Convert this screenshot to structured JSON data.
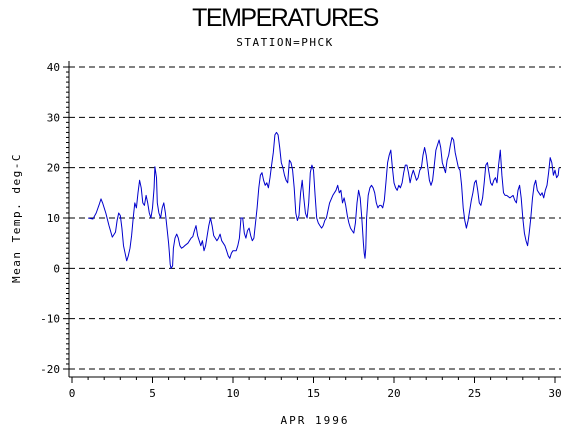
{
  "chart_data": {
    "type": "line",
    "title": "TEMPERATURES",
    "subtitle": "STATION=PHCK",
    "xlabel": "APR 1996",
    "ylabel": "Mean Temp. deg-C",
    "xlim": [
      0,
      30
    ],
    "ylim": [
      -20,
      40
    ],
    "xticks": [
      "0",
      "5",
      "10",
      "15",
      "20",
      "25",
      "30"
    ],
    "yticks": [
      "-20",
      "-10",
      "0",
      "10",
      "20",
      "30",
      "40"
    ],
    "grid": "horizontal dashed at major y ticks",
    "series": [
      {
        "color": "#0000cc",
        "points": [
          [
            1.0,
            10.0
          ],
          [
            1.3,
            9.8
          ],
          [
            1.5,
            11.0
          ],
          [
            1.7,
            12.8
          ],
          [
            1.8,
            13.8
          ],
          [
            1.9,
            13.0
          ],
          [
            2.1,
            11.0
          ],
          [
            2.3,
            8.5
          ],
          [
            2.5,
            6.2
          ],
          [
            2.7,
            7.2
          ],
          [
            2.8,
            9.5
          ],
          [
            2.9,
            11.0
          ],
          [
            3.0,
            10.5
          ],
          [
            3.1,
            8.0
          ],
          [
            3.2,
            4.5
          ],
          [
            3.3,
            3.0
          ],
          [
            3.4,
            1.5
          ],
          [
            3.5,
            2.5
          ],
          [
            3.6,
            4.0
          ],
          [
            3.7,
            6.5
          ],
          [
            3.8,
            10.0
          ],
          [
            3.9,
            13.0
          ],
          [
            4.0,
            12.0
          ],
          [
            4.1,
            15.0
          ],
          [
            4.2,
            17.5
          ],
          [
            4.3,
            16.0
          ],
          [
            4.4,
            13.0
          ],
          [
            4.5,
            12.5
          ],
          [
            4.6,
            14.5
          ],
          [
            4.7,
            13.0
          ],
          [
            4.8,
            11.0
          ],
          [
            4.9,
            10.0
          ],
          [
            5.0,
            12.0
          ],
          [
            5.1,
            16.0
          ],
          [
            5.15,
            20.2
          ],
          [
            5.25,
            18.0
          ],
          [
            5.3,
            13.0
          ],
          [
            5.4,
            11.0
          ],
          [
            5.5,
            10.0
          ],
          [
            5.6,
            12.0
          ],
          [
            5.7,
            13.0
          ],
          [
            5.8,
            11.0
          ],
          [
            5.9,
            8.0
          ],
          [
            6.0,
            5.0
          ],
          [
            6.05,
            3.0
          ],
          [
            6.1,
            0.8
          ],
          [
            6.15,
            0.0
          ],
          [
            6.25,
            0.5
          ],
          [
            6.3,
            4.0
          ],
          [
            6.4,
            6.0
          ],
          [
            6.5,
            6.8
          ],
          [
            6.6,
            6.0
          ],
          [
            6.7,
            4.5
          ],
          [
            6.8,
            4.0
          ],
          [
            6.9,
            4.2
          ],
          [
            7.0,
            4.5
          ],
          [
            7.2,
            5.0
          ],
          [
            7.4,
            6.0
          ],
          [
            7.5,
            6.3
          ],
          [
            7.6,
            7.5
          ],
          [
            7.7,
            8.5
          ],
          [
            7.8,
            6.5
          ],
          [
            7.9,
            5.5
          ],
          [
            8.0,
            4.5
          ],
          [
            8.1,
            5.5
          ],
          [
            8.2,
            3.5
          ],
          [
            8.3,
            4.5
          ],
          [
            8.4,
            6.5
          ],
          [
            8.5,
            8.5
          ],
          [
            8.6,
            10.0
          ],
          [
            8.7,
            8.5
          ],
          [
            8.8,
            6.5
          ],
          [
            8.9,
            6.0
          ],
          [
            9.0,
            5.5
          ],
          [
            9.1,
            6.0
          ],
          [
            9.2,
            6.8
          ],
          [
            9.3,
            5.5
          ],
          [
            9.4,
            5.0
          ],
          [
            9.5,
            4.5
          ],
          [
            9.6,
            3.5
          ],
          [
            9.7,
            2.5
          ],
          [
            9.8,
            2.0
          ],
          [
            9.9,
            3.0
          ],
          [
            10.0,
            3.5
          ],
          [
            10.2,
            3.5
          ],
          [
            10.3,
            4.5
          ],
          [
            10.4,
            6.0
          ],
          [
            10.5,
            10.0
          ],
          [
            10.6,
            10.0
          ],
          [
            10.7,
            7.0
          ],
          [
            10.8,
            6.0
          ],
          [
            10.9,
            7.5
          ],
          [
            11.0,
            8.0
          ],
          [
            11.1,
            6.5
          ],
          [
            11.2,
            5.5
          ],
          [
            11.3,
            6.0
          ],
          [
            11.4,
            9.0
          ],
          [
            11.5,
            12.0
          ],
          [
            11.6,
            16.0
          ],
          [
            11.7,
            18.5
          ],
          [
            11.8,
            19.0
          ],
          [
            11.9,
            17.5
          ],
          [
            12.0,
            16.5
          ],
          [
            12.1,
            17.0
          ],
          [
            12.2,
            16.0
          ],
          [
            12.3,
            18.0
          ],
          [
            12.4,
            20.5
          ],
          [
            12.5,
            23.0
          ],
          [
            12.6,
            26.5
          ],
          [
            12.7,
            27.0
          ],
          [
            12.8,
            26.5
          ],
          [
            12.9,
            24.0
          ],
          [
            13.0,
            21.0
          ],
          [
            13.1,
            20.0
          ],
          [
            13.2,
            18.5
          ],
          [
            13.3,
            17.5
          ],
          [
            13.4,
            17.0
          ],
          [
            13.5,
            21.5
          ],
          [
            13.6,
            21.0
          ],
          [
            13.7,
            19.5
          ],
          [
            13.8,
            16.0
          ],
          [
            13.9,
            11.0
          ],
          [
            14.0,
            9.5
          ],
          [
            14.1,
            10.5
          ],
          [
            14.2,
            15.0
          ],
          [
            14.3,
            17.5
          ],
          [
            14.4,
            14.0
          ],
          [
            14.5,
            11.0
          ],
          [
            14.6,
            10.0
          ],
          [
            14.7,
            13.0
          ],
          [
            14.8,
            19.0
          ],
          [
            14.9,
            20.5
          ],
          [
            15.0,
            19.5
          ],
          [
            15.1,
            14.5
          ],
          [
            15.2,
            10.0
          ],
          [
            15.3,
            9.0
          ],
          [
            15.4,
            8.5
          ],
          [
            15.5,
            8.0
          ],
          [
            15.6,
            8.5
          ],
          [
            15.7,
            9.5
          ],
          [
            15.8,
            10.0
          ],
          [
            15.9,
            11.5
          ],
          [
            16.0,
            13.0
          ],
          [
            16.2,
            14.5
          ],
          [
            16.4,
            15.5
          ],
          [
            16.5,
            16.5
          ],
          [
            16.6,
            15.0
          ],
          [
            16.7,
            15.5
          ],
          [
            16.8,
            13.0
          ],
          [
            16.9,
            14.0
          ],
          [
            17.0,
            12.5
          ],
          [
            17.1,
            10.5
          ],
          [
            17.2,
            9.0
          ],
          [
            17.3,
            8.0
          ],
          [
            17.4,
            7.5
          ],
          [
            17.5,
            7.0
          ],
          [
            17.6,
            9.0
          ],
          [
            17.7,
            13.0
          ],
          [
            17.8,
            15.5
          ],
          [
            17.9,
            14.0
          ],
          [
            18.0,
            10.0
          ],
          [
            18.1,
            5.0
          ],
          [
            18.15,
            3.0
          ],
          [
            18.2,
            2.0
          ],
          [
            18.25,
            4.0
          ],
          [
            18.3,
            10.0
          ],
          [
            18.4,
            14.5
          ],
          [
            18.5,
            16.0
          ],
          [
            18.6,
            16.5
          ],
          [
            18.7,
            16.0
          ],
          [
            18.8,
            15.0
          ],
          [
            18.9,
            13.0
          ],
          [
            19.0,
            12.0
          ],
          [
            19.1,
            12.5
          ],
          [
            19.2,
            12.5
          ],
          [
            19.3,
            12.0
          ],
          [
            19.4,
            13.5
          ],
          [
            19.5,
            17.0
          ],
          [
            19.6,
            21.0
          ],
          [
            19.7,
            22.5
          ],
          [
            19.8,
            23.5
          ],
          [
            19.9,
            20.0
          ],
          [
            20.0,
            17.0
          ],
          [
            20.1,
            16.0
          ],
          [
            20.2,
            15.5
          ],
          [
            20.3,
            16.5
          ],
          [
            20.4,
            16.0
          ],
          [
            20.5,
            17.0
          ],
          [
            20.6,
            19.0
          ],
          [
            20.7,
            20.5
          ],
          [
            20.8,
            20.5
          ],
          [
            20.9,
            19.0
          ],
          [
            21.0,
            17.0
          ],
          [
            21.1,
            18.5
          ],
          [
            21.2,
            19.5
          ],
          [
            21.3,
            18.5
          ],
          [
            21.4,
            17.5
          ],
          [
            21.5,
            18.0
          ],
          [
            21.6,
            19.5
          ],
          [
            21.7,
            20.0
          ],
          [
            21.8,
            22.5
          ],
          [
            21.9,
            24.0
          ],
          [
            22.0,
            22.5
          ],
          [
            22.1,
            20.0
          ],
          [
            22.2,
            17.5
          ],
          [
            22.3,
            16.5
          ],
          [
            22.4,
            17.5
          ],
          [
            22.5,
            20.5
          ],
          [
            22.6,
            23.5
          ],
          [
            22.7,
            24.5
          ],
          [
            22.8,
            25.5
          ],
          [
            22.9,
            24.0
          ],
          [
            23.0,
            21.0
          ],
          [
            23.1,
            20.0
          ],
          [
            23.2,
            19.0
          ],
          [
            23.3,
            21.5
          ],
          [
            23.4,
            22.5
          ],
          [
            23.5,
            24.5
          ],
          [
            23.6,
            26.0
          ],
          [
            23.7,
            25.5
          ],
          [
            23.8,
            23.0
          ],
          [
            23.9,
            21.5
          ],
          [
            24.0,
            20.0
          ],
          [
            24.1,
            19.5
          ],
          [
            24.2,
            16.5
          ],
          [
            24.3,
            12.0
          ],
          [
            24.4,
            9.5
          ],
          [
            24.5,
            8.0
          ],
          [
            24.6,
            9.5
          ],
          [
            24.7,
            11.5
          ],
          [
            24.8,
            13.5
          ],
          [
            24.9,
            15.0
          ],
          [
            25.0,
            17.0
          ],
          [
            25.1,
            17.5
          ],
          [
            25.2,
            15.5
          ],
          [
            25.3,
            13.0
          ],
          [
            25.4,
            12.5
          ],
          [
            25.5,
            14.0
          ],
          [
            25.6,
            17.0
          ],
          [
            25.7,
            20.5
          ],
          [
            25.8,
            21.0
          ],
          [
            25.9,
            19.0
          ],
          [
            26.0,
            17.0
          ],
          [
            26.1,
            16.5
          ],
          [
            26.2,
            17.5
          ],
          [
            26.3,
            18.0
          ],
          [
            26.4,
            17.0
          ],
          [
            26.5,
            20.5
          ],
          [
            26.6,
            23.5
          ],
          [
            26.7,
            18.5
          ],
          [
            26.8,
            15.0
          ],
          [
            26.9,
            14.5
          ],
          [
            27.0,
            14.5
          ],
          [
            27.2,
            14.0
          ],
          [
            27.4,
            14.5
          ],
          [
            27.5,
            13.5
          ],
          [
            27.6,
            13.0
          ],
          [
            27.7,
            15.5
          ],
          [
            27.8,
            16.5
          ],
          [
            27.9,
            14.0
          ],
          [
            28.0,
            10.0
          ],
          [
            28.1,
            7.0
          ],
          [
            28.2,
            5.5
          ],
          [
            28.3,
            4.5
          ],
          [
            28.4,
            7.0
          ],
          [
            28.5,
            10.0
          ],
          [
            28.6,
            14.0
          ],
          [
            28.7,
            16.5
          ],
          [
            28.8,
            17.5
          ],
          [
            28.9,
            15.5
          ],
          [
            29.0,
            15.0
          ],
          [
            29.1,
            14.5
          ],
          [
            29.2,
            15.0
          ],
          [
            29.3,
            14.0
          ],
          [
            29.4,
            15.5
          ],
          [
            29.5,
            16.5
          ],
          [
            29.6,
            19.0
          ],
          [
            29.7,
            22.0
          ],
          [
            29.8,
            21.0
          ],
          [
            29.9,
            18.5
          ],
          [
            30.0,
            19.5
          ],
          [
            30.1,
            18.0
          ],
          [
            30.2,
            18.5
          ],
          [
            30.25,
            20.0
          ]
        ]
      }
    ]
  }
}
